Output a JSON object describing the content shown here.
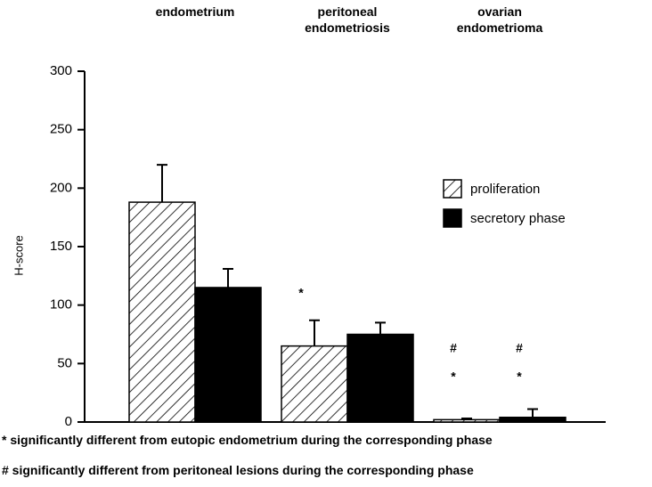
{
  "chart_data": {
    "type": "bar",
    "categories": [
      "endometrium",
      "peritoneal endometriosis",
      "ovarian endometrioma"
    ],
    "series": [
      {
        "name": "proliferation",
        "color": "#000",
        "pattern": "hatch",
        "values": [
          188,
          65,
          2
        ],
        "errors": [
          32,
          22,
          1
        ]
      },
      {
        "name": "secretory phase",
        "color": "#000",
        "values": [
          115,
          75,
          4
        ],
        "errors": [
          16,
          10,
          7
        ]
      }
    ],
    "ylabel": "H-score",
    "ylim": [
      0,
      300
    ],
    "yticks": [
      0,
      50,
      100,
      150,
      200,
      250,
      300
    ],
    "legend": "right",
    "annotations": [
      {
        "text": "*",
        "series": "proliferation",
        "category": "peritoneal endometriosis"
      },
      {
        "text": "*",
        "series": "proliferation",
        "category": "ovarian endometrioma"
      },
      {
        "text": "#",
        "series": "proliferation",
        "category": "ovarian endometrioma"
      },
      {
        "text": "*",
        "series": "secretory phase",
        "category": "ovarian endometrioma"
      },
      {
        "text": "#",
        "series": "secretory phase",
        "category": "ovarian endometrioma"
      }
    ],
    "footnotes": [
      "* significantly different from eutopic endometrium during the corresponding phase",
      "# significantly different from peritoneal lesions during the corresponding phase"
    ]
  }
}
